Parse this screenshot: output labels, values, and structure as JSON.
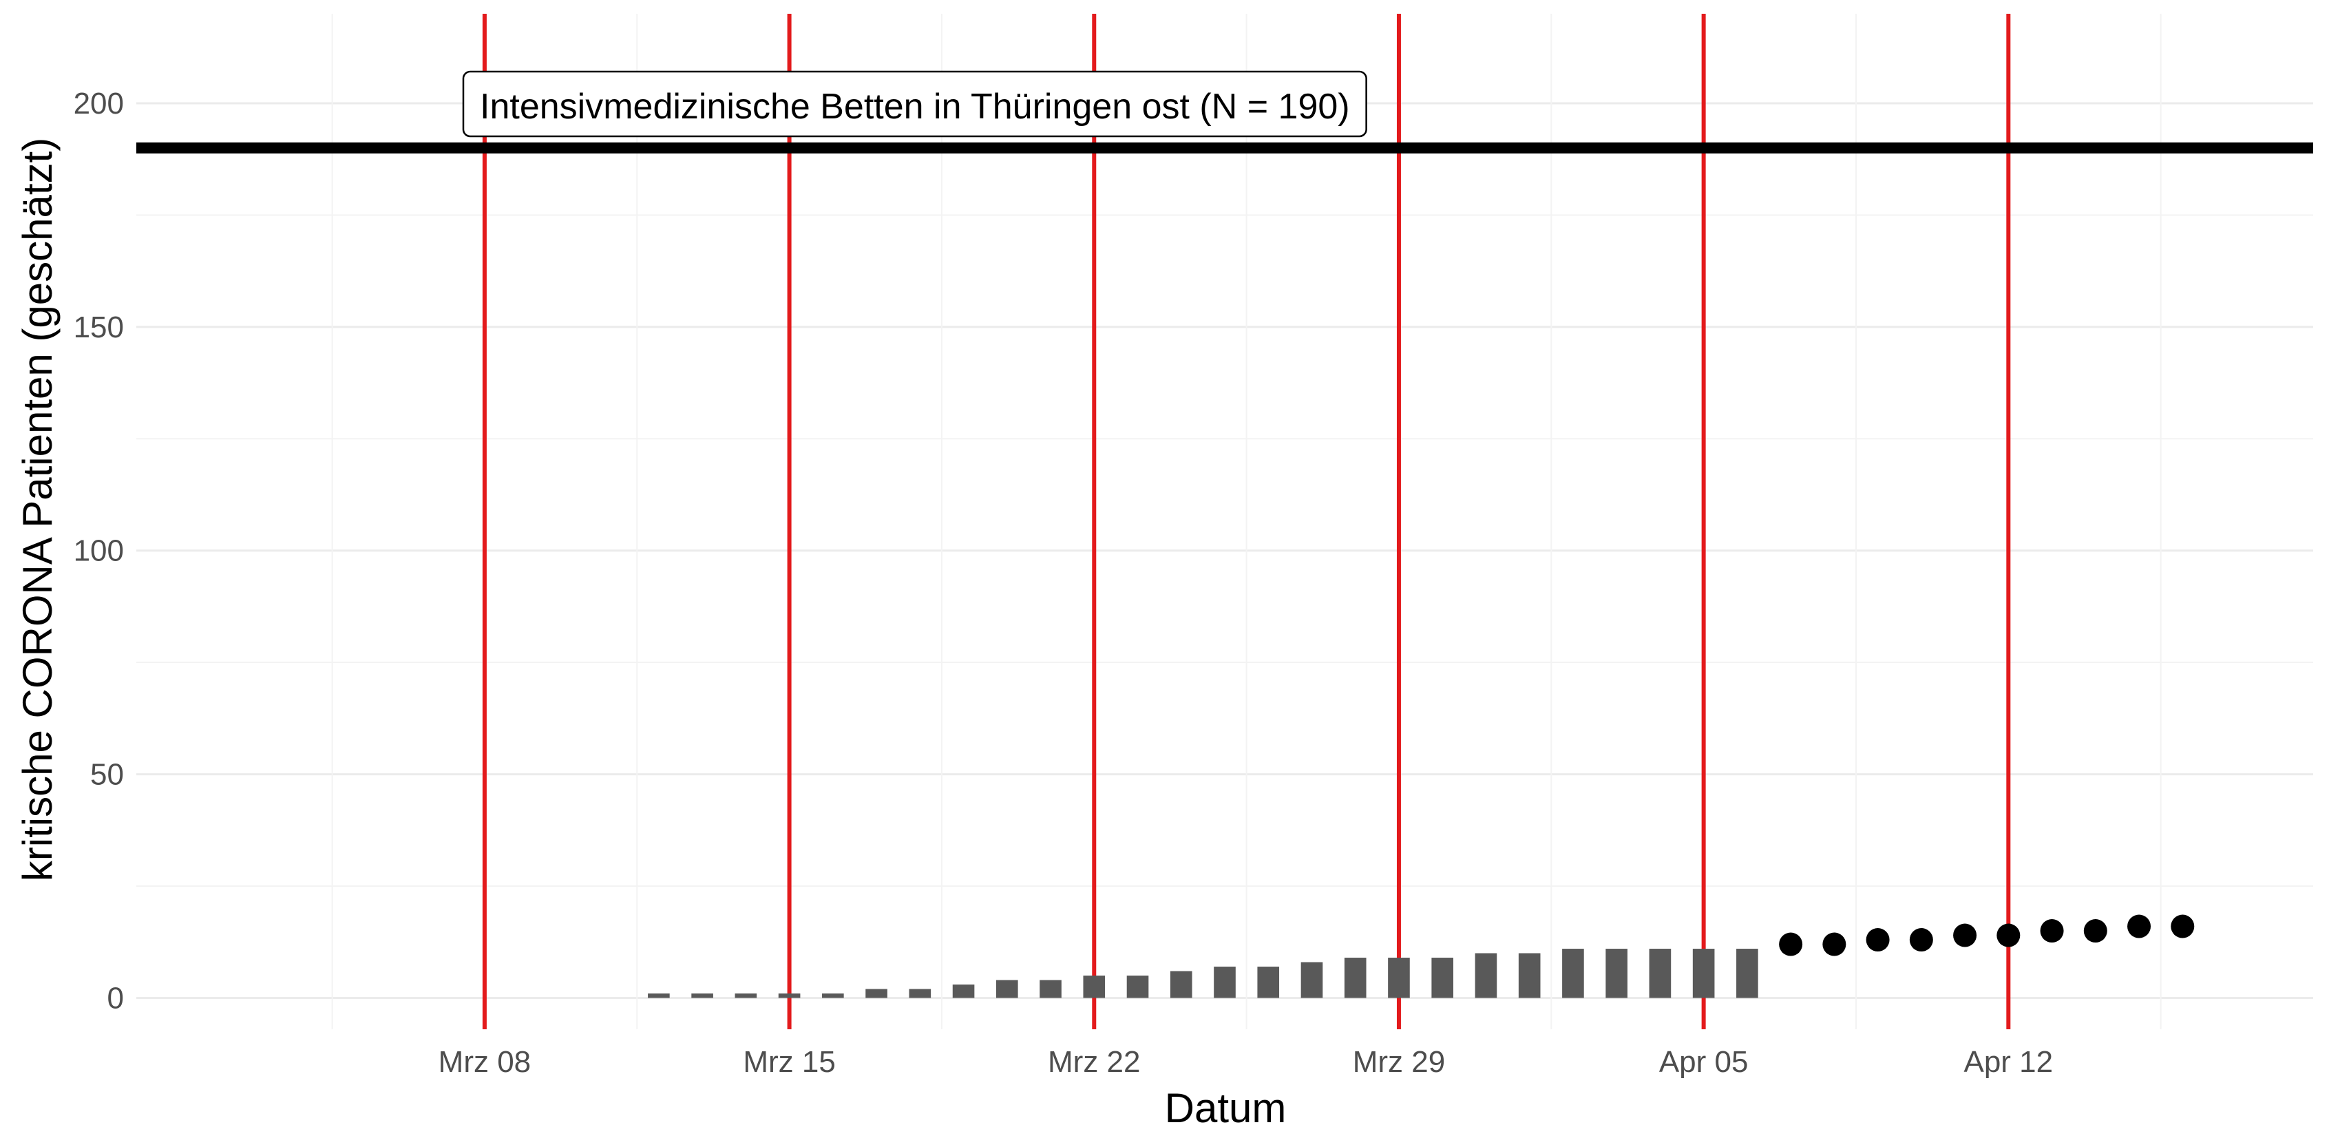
{
  "chart_data": {
    "type": "bar",
    "title": "",
    "xlabel": "Datum",
    "ylabel": "kritische CORONA Patienten (geschätzt)",
    "ylim": [
      -7,
      220
    ],
    "xlim": [
      "2020-02-29",
      "2020-04-19"
    ],
    "grid": true,
    "y_ticks": [
      0,
      50,
      100,
      150,
      200
    ],
    "x_ticks": [
      {
        "date": "2020-03-08",
        "label": "Mrz 08"
      },
      {
        "date": "2020-03-15",
        "label": "Mrz 15"
      },
      {
        "date": "2020-03-22",
        "label": "Mrz 22"
      },
      {
        "date": "2020-03-29",
        "label": "Mrz 29"
      },
      {
        "date": "2020-04-05",
        "label": "Apr 05"
      },
      {
        "date": "2020-04-12",
        "label": "Apr 12"
      }
    ],
    "vertical_lines": [
      "2020-03-08",
      "2020-03-15",
      "2020-03-22",
      "2020-03-29",
      "2020-04-05",
      "2020-04-12"
    ],
    "vertical_line_color": "#e31a1c",
    "bar_color": "#595959",
    "point_color": "#000000",
    "bars": [
      {
        "date": "2020-03-12",
        "value": 1
      },
      {
        "date": "2020-03-13",
        "value": 1
      },
      {
        "date": "2020-03-14",
        "value": 1
      },
      {
        "date": "2020-03-15",
        "value": 1
      },
      {
        "date": "2020-03-16",
        "value": 1
      },
      {
        "date": "2020-03-17",
        "value": 2
      },
      {
        "date": "2020-03-18",
        "value": 2
      },
      {
        "date": "2020-03-19",
        "value": 3
      },
      {
        "date": "2020-03-20",
        "value": 4
      },
      {
        "date": "2020-03-21",
        "value": 4
      },
      {
        "date": "2020-03-22",
        "value": 5
      },
      {
        "date": "2020-03-23",
        "value": 5
      },
      {
        "date": "2020-03-24",
        "value": 6
      },
      {
        "date": "2020-03-25",
        "value": 7
      },
      {
        "date": "2020-03-26",
        "value": 7
      },
      {
        "date": "2020-03-27",
        "value": 8
      },
      {
        "date": "2020-03-28",
        "value": 9
      },
      {
        "date": "2020-03-29",
        "value": 9
      },
      {
        "date": "2020-03-30",
        "value": 9
      },
      {
        "date": "2020-03-31",
        "value": 10
      },
      {
        "date": "2020-04-01",
        "value": 10
      },
      {
        "date": "2020-04-02",
        "value": 11
      },
      {
        "date": "2020-04-03",
        "value": 11
      },
      {
        "date": "2020-04-04",
        "value": 11
      },
      {
        "date": "2020-04-05",
        "value": 11
      },
      {
        "date": "2020-04-06",
        "value": 11
      }
    ],
    "points": [
      {
        "date": "2020-04-07",
        "value": 12
      },
      {
        "date": "2020-04-08",
        "value": 12
      },
      {
        "date": "2020-04-09",
        "value": 13
      },
      {
        "date": "2020-04-10",
        "value": 13
      },
      {
        "date": "2020-04-11",
        "value": 14
      },
      {
        "date": "2020-04-12",
        "value": 14
      },
      {
        "date": "2020-04-13",
        "value": 15
      },
      {
        "date": "2020-04-14",
        "value": 15
      },
      {
        "date": "2020-04-15",
        "value": 16
      },
      {
        "date": "2020-04-16",
        "value": 16
      }
    ],
    "capacity": {
      "value": 190,
      "label": "Intensivmedizinische Betten in Thüringen ost (N = 190)"
    }
  }
}
